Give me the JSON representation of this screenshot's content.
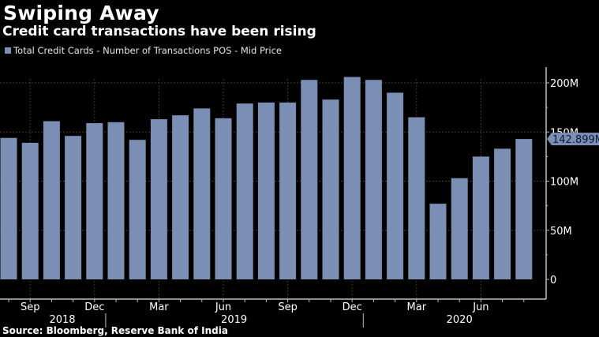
{
  "header": {
    "title": "Swiping Away",
    "subtitle": "Credit card transactions have been rising"
  },
  "legend": {
    "label": "Total Credit Cards  - Number of Transactions POS - Mid Price"
  },
  "source": "Source: Bloomberg, Reserve Bank of India",
  "colors": {
    "bar": "#7a8fb3",
    "background": "#000000",
    "grid": "#3a3a3a",
    "axis": "#bfbfbf",
    "tag_text": "#0a1a33"
  },
  "chart_data": {
    "type": "bar",
    "title": "Swiping Away",
    "subtitle": "Credit card transactions have been rising",
    "xlabel": "",
    "ylabel": "",
    "categories": [
      "Aug 2018",
      "Sep 2018",
      "Oct 2018",
      "Nov 2018",
      "Dec 2018",
      "Jan 2019",
      "Feb 2019",
      "Mar 2019",
      "Apr 2019",
      "May 2019",
      "Jun 2019",
      "Jul 2019",
      "Aug 2019",
      "Sep 2019",
      "Oct 2019",
      "Nov 2019",
      "Dec 2019",
      "Jan 2020",
      "Feb 2020",
      "Mar 2020",
      "Apr 2020",
      "May 2020",
      "Jun 2020",
      "Jul 2020",
      "Aug 2020"
    ],
    "series": [
      {
        "name": "Total Credit Cards - Number of Transactions POS - Mid Price",
        "values": [
          144,
          139,
          161,
          146,
          159,
          160,
          142,
          163,
          167,
          174,
          164,
          179,
          180,
          180,
          203,
          183,
          206,
          203,
          190,
          165,
          77,
          103,
          125,
          133,
          142.899
        ]
      }
    ],
    "ylim": [
      0,
      220
    ],
    "yticks": [
      0,
      50,
      100,
      150,
      200
    ],
    "ytick_labels": [
      "0",
      "50M",
      "100M",
      "150M",
      "200M"
    ],
    "y_axis_side": "right",
    "last_value_label": "142.899M",
    "xtick_labels": [
      {
        "index": 1,
        "label": "Sep"
      },
      {
        "index": 4,
        "label": "Dec"
      },
      {
        "index": 7,
        "label": "Mar"
      },
      {
        "index": 10,
        "label": "Jun"
      },
      {
        "index": 13,
        "label": "Sep"
      },
      {
        "index": 16,
        "label": "Dec"
      },
      {
        "index": 19,
        "label": "Mar"
      },
      {
        "index": 22,
        "label": "Jun"
      }
    ],
    "year_labels": [
      {
        "index": 2.5,
        "label": "2018"
      },
      {
        "index": 10.5,
        "label": "2019"
      },
      {
        "index": 21,
        "label": "2020"
      }
    ],
    "year_boundaries": [
      4.5,
      16.5
    ],
    "grid": true,
    "legend_position": "top-left"
  }
}
